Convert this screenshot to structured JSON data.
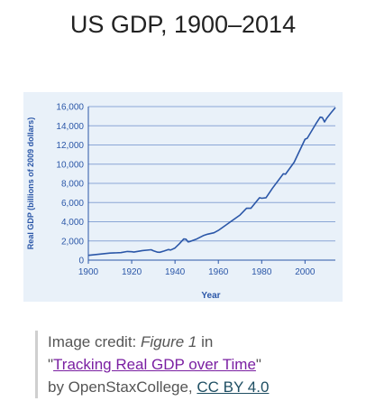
{
  "page": {
    "title": "US GDP, 1900–2014"
  },
  "chart_data": {
    "type": "line",
    "xlabel": "Year",
    "ylabel": "Real GDP (billions of 2009 dollars)",
    "xlim": [
      1900,
      2014
    ],
    "ylim": [
      0,
      16000
    ],
    "x_ticks": [
      "1900",
      "1920",
      "1940",
      "1960",
      "1980",
      "2000"
    ],
    "y_ticks": [
      "0",
      "2,000",
      "4,000",
      "6,000",
      "8,000",
      "10,000",
      "12,000",
      "14,000",
      "16,000"
    ],
    "grid": "horizontal",
    "line_color": "#2b57a8",
    "axis_text_color": "#2b57a8",
    "series": [
      {
        "x": [
          1900,
          1905,
          1910,
          1915,
          1918,
          1920,
          1921,
          1925,
          1929,
          1930,
          1932,
          1933,
          1935,
          1937,
          1938,
          1940,
          1942,
          1944,
          1945,
          1946,
          1947,
          1950,
          1953,
          1955,
          1958,
          1960,
          1965,
          1970,
          1973,
          1975,
          1979,
          1980,
          1982,
          1985,
          1990,
          1991,
          1995,
          2000,
          2001,
          2005,
          2007,
          2008,
          2009,
          2010,
          2012,
          2014
        ],
        "y": [
          500,
          620,
          730,
          780,
          900,
          880,
          840,
          1000,
          1080,
          980,
          830,
          820,
          950,
          1100,
          1050,
          1260,
          1700,
          2200,
          2180,
          1900,
          1950,
          2200,
          2550,
          2700,
          2850,
          3100,
          3900,
          4700,
          5400,
          5400,
          6500,
          6450,
          6500,
          7500,
          9000,
          8950,
          10200,
          12600,
          12700,
          14200,
          14900,
          14850,
          14400,
          14780,
          15350,
          15900
        ]
      }
    ]
  },
  "credit": {
    "prefix": "Image credit: ",
    "figure": "Figure 1",
    "in_text": " in",
    "open_quote": "\"",
    "article": "Tracking Real GDP over Time",
    "close_quote": "\"",
    "by_text": "by OpenStaxCollege, ",
    "license": "CC BY 4.0"
  }
}
